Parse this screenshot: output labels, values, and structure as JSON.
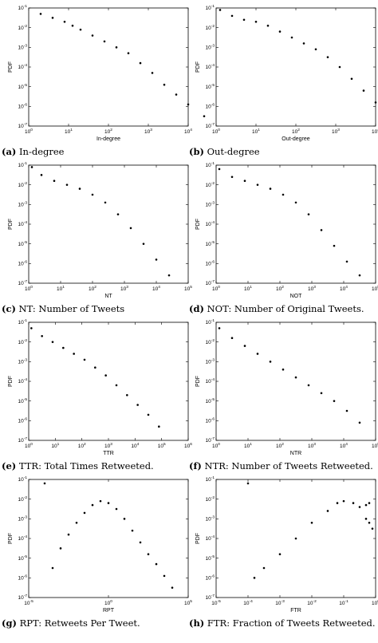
{
  "chart_data": [
    {
      "type": "scatter",
      "panel": "a",
      "caption": "In-degree",
      "tag": "(a)",
      "xlabel": "In-degree",
      "ylabel": "PDF",
      "xscale": "log",
      "yscale": "log",
      "xlim_exp": [
        0,
        4
      ],
      "ylim_exp": [
        -7,
        -1
      ],
      "xtick_exps": [
        0,
        1,
        2,
        3,
        4
      ],
      "ytick_exps": [
        -7,
        -6,
        -5,
        -4,
        -3,
        -2,
        -1
      ],
      "xticks": [
        "10^0",
        "10^1",
        "10^2",
        "10^3",
        "10^4"
      ],
      "yticks": [
        "10^-7",
        "10^-6",
        "10^-5",
        "10^-4",
        "10^-3",
        "10^-2",
        "10^-1"
      ],
      "points": [
        [
          0.3,
          -1.3
        ],
        [
          0.6,
          -1.5
        ],
        [
          0.9,
          -1.7
        ],
        [
          1.1,
          -1.9
        ],
        [
          1.3,
          -2.1
        ],
        [
          1.6,
          -2.4
        ],
        [
          1.9,
          -2.7
        ],
        [
          2.2,
          -3.0
        ],
        [
          2.5,
          -3.3
        ],
        [
          2.8,
          -3.8
        ],
        [
          3.1,
          -4.3
        ],
        [
          3.4,
          -4.9
        ],
        [
          3.7,
          -5.4
        ],
        [
          4.0,
          -5.9
        ],
        [
          4.4,
          -6.5
        ]
      ]
    },
    {
      "type": "scatter",
      "panel": "b",
      "caption": "Out-degree",
      "tag": "(b)",
      "xlabel": "Out-degree",
      "ylabel": "PDF",
      "xscale": "log",
      "yscale": "log",
      "xlim_exp": [
        0,
        4
      ],
      "ylim_exp": [
        -7,
        -1
      ],
      "xtick_exps": [
        0,
        1,
        2,
        3,
        4
      ],
      "ytick_exps": [
        -7,
        -6,
        -5,
        -4,
        -3,
        -2,
        -1
      ],
      "xticks": [
        "10^0",
        "10^1",
        "10^2",
        "10^3",
        "10^4"
      ],
      "yticks": [
        "10^-7",
        "10^-6",
        "10^-5",
        "10^-4",
        "10^-3",
        "10^-2",
        "10^-1"
      ],
      "points": [
        [
          0.1,
          -1.1
        ],
        [
          0.4,
          -1.4
        ],
        [
          0.7,
          -1.6
        ],
        [
          1.0,
          -1.7
        ],
        [
          1.3,
          -1.9
        ],
        [
          1.6,
          -2.2
        ],
        [
          1.9,
          -2.5
        ],
        [
          2.2,
          -2.8
        ],
        [
          2.5,
          -3.1
        ],
        [
          2.8,
          -3.5
        ],
        [
          3.1,
          -4.0
        ],
        [
          3.4,
          -4.6
        ],
        [
          3.7,
          -5.2
        ],
        [
          4.0,
          -5.8
        ],
        [
          4.2,
          -6.5
        ]
      ]
    },
    {
      "type": "scatter",
      "panel": "c",
      "caption": "NT: Number of Tweets",
      "tag": "(c)",
      "xlabel": "NT",
      "ylabel": "PDF",
      "xscale": "log",
      "yscale": "log",
      "xlim_exp": [
        0,
        5
      ],
      "ylim_exp": [
        -7,
        -1
      ],
      "xtick_exps": [
        0,
        1,
        2,
        3,
        4,
        5
      ],
      "ytick_exps": [
        -7,
        -6,
        -5,
        -4,
        -3,
        -2,
        -1
      ],
      "xticks": [
        "10^0",
        "10^1",
        "10^2",
        "10^3",
        "10^4",
        "10^5"
      ],
      "yticks": [
        "10^-7",
        "10^-6",
        "10^-5",
        "10^-4",
        "10^-3",
        "10^-2",
        "10^-1"
      ],
      "points": [
        [
          0.1,
          -1.1
        ],
        [
          0.4,
          -1.5
        ],
        [
          0.8,
          -1.8
        ],
        [
          1.2,
          -2.0
        ],
        [
          1.6,
          -2.2
        ],
        [
          2.0,
          -2.5
        ],
        [
          2.4,
          -2.9
        ],
        [
          2.8,
          -3.5
        ],
        [
          3.2,
          -4.2
        ],
        [
          3.6,
          -5.0
        ],
        [
          4.0,
          -5.8
        ],
        [
          4.4,
          -6.6
        ]
      ]
    },
    {
      "type": "scatter",
      "panel": "d",
      "caption": "NOT: Number of Original Tweets.",
      "tag": "(d)",
      "xlabel": "NOT",
      "ylabel": "PDF",
      "xscale": "log",
      "yscale": "log",
      "xlim_exp": [
        0,
        5
      ],
      "ylim_exp": [
        -7,
        -1
      ],
      "xtick_exps": [
        0,
        1,
        2,
        3,
        4,
        5
      ],
      "ytick_exps": [
        -7,
        -6,
        -5,
        -4,
        -3,
        -2,
        -1
      ],
      "xticks": [
        "10^0",
        "10^1",
        "10^2",
        "10^3",
        "10^4",
        "10^5"
      ],
      "yticks": [
        "10^-7",
        "10^-6",
        "10^-5",
        "10^-4",
        "10^-3",
        "10^-2",
        "10^-1"
      ],
      "points": [
        [
          0.1,
          -1.2
        ],
        [
          0.5,
          -1.6
        ],
        [
          0.9,
          -1.8
        ],
        [
          1.3,
          -2.0
        ],
        [
          1.7,
          -2.2
        ],
        [
          2.1,
          -2.5
        ],
        [
          2.5,
          -2.9
        ],
        [
          2.9,
          -3.5
        ],
        [
          3.3,
          -4.3
        ],
        [
          3.7,
          -5.1
        ],
        [
          4.1,
          -5.9
        ],
        [
          4.5,
          -6.6
        ]
      ]
    },
    {
      "type": "scatter",
      "panel": "e",
      "caption": "TTR: Total Times Retweeted.",
      "tag": "(e)",
      "xlabel": "TTR",
      "ylabel": "PDF",
      "xscale": "log",
      "yscale": "log",
      "xlim_exp": [
        0,
        6
      ],
      "ylim_exp": [
        -7,
        -1
      ],
      "xtick_exps": [
        0,
        1,
        2,
        3,
        4,
        5,
        6
      ],
      "ytick_exps": [
        -7,
        -6,
        -5,
        -4,
        -3,
        -2,
        -1
      ],
      "xticks": [
        "10^0",
        "10^1",
        "10^2",
        "10^3",
        "10^4",
        "10^5",
        "10^6"
      ],
      "yticks": [
        "10^-7",
        "10^-6",
        "10^-5",
        "10^-4",
        "10^-3",
        "10^-2",
        "10^-1"
      ],
      "points": [
        [
          0.1,
          -1.3
        ],
        [
          0.5,
          -1.7
        ],
        [
          0.9,
          -2.0
        ],
        [
          1.3,
          -2.3
        ],
        [
          1.7,
          -2.6
        ],
        [
          2.1,
          -2.9
        ],
        [
          2.5,
          -3.3
        ],
        [
          2.9,
          -3.7
        ],
        [
          3.3,
          -4.2
        ],
        [
          3.7,
          -4.7
        ],
        [
          4.1,
          -5.2
        ],
        [
          4.5,
          -5.7
        ],
        [
          4.9,
          -6.3
        ]
      ]
    },
    {
      "type": "scatter",
      "panel": "f",
      "caption": "NTR: Number of Tweets Retweeted.",
      "tag": "(f)",
      "xlabel": "NTR",
      "ylabel": "PDF",
      "xscale": "log",
      "yscale": "log",
      "xlim_exp": [
        0,
        5
      ],
      "ylim_exp": [
        -7,
        -1
      ],
      "xtick_exps": [
        0,
        1,
        2,
        3,
        4,
        5
      ],
      "ytick_exps": [
        -7,
        -6,
        -5,
        -4,
        -3,
        -2,
        -1
      ],
      "xticks": [
        "10^0",
        "10^1",
        "10^2",
        "10^3",
        "10^4",
        "10^5"
      ],
      "yticks": [
        "10^-7",
        "10^-6",
        "10^-5",
        "10^-4",
        "10^-3",
        "10^-2",
        "10^-1"
      ],
      "points": [
        [
          0.1,
          -1.3
        ],
        [
          0.5,
          -1.8
        ],
        [
          0.9,
          -2.2
        ],
        [
          1.3,
          -2.6
        ],
        [
          1.7,
          -3.0
        ],
        [
          2.1,
          -3.4
        ],
        [
          2.5,
          -3.8
        ],
        [
          2.9,
          -4.2
        ],
        [
          3.3,
          -4.6
        ],
        [
          3.7,
          -5.0
        ],
        [
          4.1,
          -5.5
        ],
        [
          4.5,
          -6.1
        ]
      ]
    },
    {
      "type": "scatter",
      "panel": "g",
      "caption": "RPT: Retweets Per Tweet.",
      "tag": "(g)",
      "xlabel": "RPT",
      "ylabel": "PDF",
      "xscale": "log",
      "yscale": "log",
      "xlim_exp": [
        -5,
        5
      ],
      "ylim_exp": [
        -7,
        -1
      ],
      "xtick_exps": [
        -5,
        0,
        5
      ],
      "ytick_exps": [
        -7,
        -6,
        -5,
        -4,
        -3,
        -2,
        -1
      ],
      "xticks": [
        "10^-5",
        "10^0",
        "10^5"
      ],
      "yticks": [
        "10^-7",
        "10^-6",
        "10^-5",
        "10^-4",
        "10^-3",
        "10^-2",
        "10^-1"
      ],
      "points": [
        [
          -4.0,
          -1.2
        ],
        [
          -3.5,
          -5.5
        ],
        [
          -3.0,
          -4.5
        ],
        [
          -2.5,
          -3.8
        ],
        [
          -2.0,
          -3.2
        ],
        [
          -1.5,
          -2.7
        ],
        [
          -1.0,
          -2.3
        ],
        [
          -0.5,
          -2.1
        ],
        [
          0.0,
          -2.2
        ],
        [
          0.5,
          -2.5
        ],
        [
          1.0,
          -3.0
        ],
        [
          1.5,
          -3.6
        ],
        [
          2.0,
          -4.2
        ],
        [
          2.5,
          -4.8
        ],
        [
          3.0,
          -5.3
        ],
        [
          3.5,
          -5.9
        ],
        [
          4.0,
          -6.5
        ]
      ]
    },
    {
      "type": "scatter",
      "panel": "h",
      "caption": "FTR: Fraction of Tweets Retweeted.",
      "tag": "(h)",
      "xlabel": "FTR",
      "ylabel": "PDF",
      "xscale": "log",
      "yscale": "log",
      "xlim_exp": [
        -5,
        0
      ],
      "ylim_exp": [
        -7,
        -1
      ],
      "xtick_exps": [
        -5,
        -4,
        -3,
        -2,
        -1,
        0
      ],
      "ytick_exps": [
        -7,
        -6,
        -5,
        -4,
        -3,
        -2,
        -1
      ],
      "xticks": [
        "10^-5",
        "10^-4",
        "10^-3",
        "10^-2",
        "10^-1",
        "10^0"
      ],
      "yticks": [
        "10^-7",
        "10^-6",
        "10^-5",
        "10^-4",
        "10^-3",
        "10^-2",
        "10^-1"
      ],
      "points": [
        [
          -4.0,
          -1.2
        ],
        [
          -3.8,
          -6.0
        ],
        [
          -3.5,
          -5.5
        ],
        [
          -3.0,
          -4.8
        ],
        [
          -2.5,
          -4.0
        ],
        [
          -2.0,
          -3.2
        ],
        [
          -1.5,
          -2.6
        ],
        [
          -1.2,
          -2.2
        ],
        [
          -1.0,
          -2.1
        ],
        [
          -0.7,
          -2.2
        ],
        [
          -0.5,
          -2.4
        ],
        [
          -0.3,
          -2.3
        ],
        [
          -0.2,
          -2.2
        ],
        [
          -0.3,
          -3.0
        ],
        [
          -0.2,
          -3.2
        ],
        [
          -0.1,
          -3.5
        ]
      ]
    }
  ]
}
